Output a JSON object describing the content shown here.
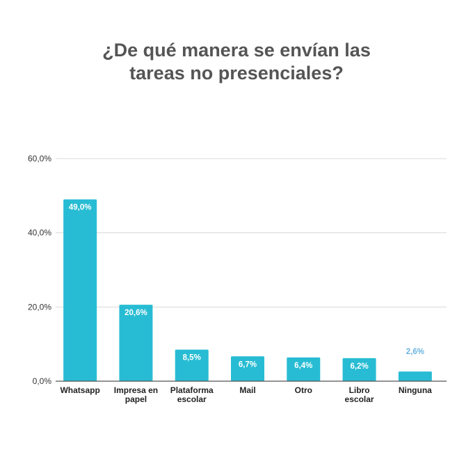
{
  "chart_data": {
    "type": "bar",
    "title_lines": [
      "¿De qué manera se envían las",
      "tareas no presenciales?"
    ],
    "categories": [
      [
        "Whatsapp"
      ],
      [
        "Impresa en",
        "papel"
      ],
      [
        "Plataforma",
        "escolar"
      ],
      [
        "Mail"
      ],
      [
        "Otro"
      ],
      [
        "Libro",
        "escolar"
      ],
      [
        "Ninguna"
      ]
    ],
    "values": [
      49.0,
      20.6,
      8.5,
      6.7,
      6.4,
      6.2,
      2.6
    ],
    "data_labels": [
      "49,0%",
      "20,6%",
      "8,5%",
      "6,7%",
      "6,4%",
      "6,2%",
      "2,6%"
    ],
    "yticks": [
      "0,0%",
      "20,0%",
      "40,0%",
      "60,0%"
    ],
    "ytick_values": [
      0,
      20,
      40,
      60
    ],
    "ylim": [
      0,
      60
    ],
    "xlabel": "",
    "ylabel": "",
    "grid": true,
    "legend": "none",
    "colors": {
      "bar": "#27BCD3",
      "label_inside": "#ffffff",
      "label_outside": "#6BB3E0",
      "title": "#555555",
      "grid": "#d9d9d9",
      "axis": "#555555"
    }
  }
}
